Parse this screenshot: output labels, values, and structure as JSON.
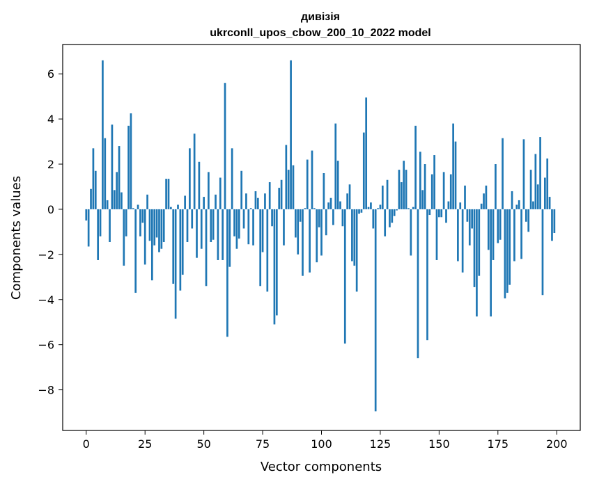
{
  "chart_data": {
    "type": "bar",
    "title_line1": "дивізія",
    "title_line2": "ukrconll_upos_cbow_200_10_2022 model",
    "xlabel": "Vector components",
    "ylabel": "Components values",
    "xlim": [
      -10,
      210
    ],
    "ylim": [
      -9.8,
      7.3
    ],
    "xticks": [
      0,
      25,
      50,
      75,
      100,
      125,
      150,
      175,
      200
    ],
    "yticks": [
      -8,
      -6,
      -4,
      -2,
      0,
      2,
      4,
      6
    ],
    "bar_color": "#1f77b4",
    "values": [
      -0.5,
      -1.65,
      0.9,
      2.7,
      1.7,
      -2.25,
      -1.2,
      6.6,
      3.15,
      0.4,
      -1.45,
      3.75,
      0.85,
      1.65,
      2.8,
      0.75,
      -2.5,
      -1.2,
      3.7,
      4.25,
      0.05,
      -3.7,
      0.2,
      -1.2,
      -0.6,
      -2.45,
      0.65,
      -1.4,
      -3.15,
      -1.6,
      -1.25,
      -1.9,
      -1.75,
      -1.45,
      1.35,
      1.35,
      0.1,
      -3.3,
      -4.85,
      0.2,
      -3.6,
      -2.9,
      0.6,
      -1.45,
      2.7,
      -0.85,
      3.35,
      -2.15,
      2.1,
      -1.75,
      0.55,
      -3.4,
      1.65,
      -1.45,
      -1.35,
      0.65,
      -2.25,
      1.4,
      -2.25,
      5.6,
      -5.65,
      -2.55,
      2.7,
      -1.2,
      -1.75,
      -1.3,
      1.7,
      -0.85,
      0.7,
      -1.55,
      0.05,
      -1.6,
      0.8,
      0.5,
      -3.4,
      -1.9,
      0.7,
      -3.65,
      1.2,
      -0.75,
      -5.1,
      -4.7,
      0.95,
      1.3,
      -1.6,
      2.85,
      1.75,
      6.6,
      1.95,
      -1.25,
      -2.0,
      -0.55,
      -2.95,
      0.05,
      2.2,
      -2.8,
      2.6,
      0.05,
      -2.35,
      -0.8,
      -2.05,
      1.6,
      -1.15,
      0.3,
      0.5,
      -0.7,
      3.8,
      2.15,
      0.35,
      -0.75,
      -5.95,
      0.7,
      1.1,
      -2.3,
      -2.5,
      -3.65,
      -0.2,
      -0.15,
      3.4,
      4.95,
      0.1,
      0.3,
      -0.85,
      -8.95,
      0.05,
      0.2,
      1.05,
      -1.2,
      1.3,
      -0.8,
      -0.6,
      -0.3,
      -0.05,
      1.75,
      1.2,
      2.15,
      1.75,
      0.05,
      -2.05,
      0.1,
      3.7,
      -6.6,
      2.55,
      0.85,
      2.0,
      -5.8,
      -0.25,
      1.55,
      2.4,
      -2.25,
      -0.35,
      -0.35,
      1.65,
      -0.6,
      0.35,
      1.55,
      3.8,
      3.0,
      -2.3,
      0.3,
      -2.8,
      1.05,
      -0.55,
      -1.6,
      -0.85,
      -3.45,
      -4.75,
      -2.95,
      0.25,
      0.7,
      1.05,
      -1.8,
      -4.75,
      -2.25,
      2.0,
      -1.5,
      -1.35,
      3.15,
      -3.95,
      -3.7,
      -3.35,
      0.8,
      -2.3,
      0.2,
      0.4,
      -2.2,
      3.1,
      -0.55,
      -1.0,
      1.75,
      0.35,
      2.45,
      1.1,
      3.2,
      -3.8,
      1.4,
      2.25,
      0.55,
      -1.4,
      -1.05
    ]
  }
}
